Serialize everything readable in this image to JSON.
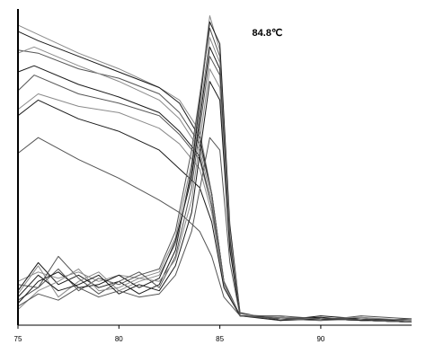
{
  "chart_data": {
    "type": "line",
    "title": "",
    "xlabel": "",
    "ylabel": "",
    "xlim": [
      75,
      94.5
    ],
    "ylim": [
      0,
      1
    ],
    "x_ticks": [
      75,
      80,
      85,
      90
    ],
    "x_tick_labels": [
      "75",
      "80",
      "85",
      "90"
    ],
    "grid": false,
    "legend": "none",
    "annotation": {
      "text": "84.8℃",
      "x": 86.6,
      "y": 0.925
    },
    "colors": {
      "dark": "#1a1a1a",
      "mid": "#555555",
      "light": "#8a8a8a"
    },
    "melt_curves": [
      {
        "values": [
          [
            75,
            0.96
          ],
          [
            76,
            0.93
          ],
          [
            78,
            0.87
          ],
          [
            80,
            0.82
          ],
          [
            82,
            0.76
          ],
          [
            83,
            0.72
          ],
          [
            84,
            0.62
          ],
          [
            84.6,
            0.42
          ],
          [
            85.2,
            0.14
          ],
          [
            86,
            0.03
          ],
          [
            90,
            0.02
          ],
          [
            94.5,
            0.01
          ]
        ]
      },
      {
        "values": [
          [
            75,
            0.94
          ],
          [
            76,
            0.91
          ],
          [
            78,
            0.86
          ],
          [
            80,
            0.81
          ],
          [
            82,
            0.76
          ],
          [
            83,
            0.71
          ],
          [
            84,
            0.6
          ],
          [
            84.6,
            0.42
          ],
          [
            85.2,
            0.14
          ],
          [
            86,
            0.03
          ],
          [
            90,
            0.02
          ],
          [
            94.5,
            0.01
          ]
        ]
      },
      {
        "values": [
          [
            75,
            0.88
          ],
          [
            76,
            0.87
          ],
          [
            78,
            0.82
          ],
          [
            80,
            0.79
          ],
          [
            82,
            0.74
          ],
          [
            83,
            0.68
          ],
          [
            84,
            0.58
          ],
          [
            84.6,
            0.42
          ],
          [
            85.2,
            0.14
          ],
          [
            86,
            0.03
          ],
          [
            90,
            0.02
          ],
          [
            94.5,
            0.01
          ]
        ]
      },
      {
        "values": [
          [
            75,
            0.87
          ],
          [
            75.8,
            0.89
          ],
          [
            78,
            0.83
          ],
          [
            80,
            0.78
          ],
          [
            82,
            0.72
          ],
          [
            83,
            0.66
          ],
          [
            84,
            0.56
          ],
          [
            84.6,
            0.4
          ],
          [
            85.2,
            0.13
          ],
          [
            86,
            0.03
          ],
          [
            90,
            0.02
          ],
          [
            94.5,
            0.01
          ]
        ]
      },
      {
        "values": [
          [
            75,
            0.81
          ],
          [
            75.8,
            0.83
          ],
          [
            78,
            0.77
          ],
          [
            80,
            0.73
          ],
          [
            82,
            0.68
          ],
          [
            83,
            0.62
          ],
          [
            84,
            0.54
          ],
          [
            84.6,
            0.38
          ],
          [
            85.2,
            0.13
          ],
          [
            86,
            0.03
          ],
          [
            90,
            0.02
          ],
          [
            94.5,
            0.01
          ]
        ]
      },
      {
        "values": [
          [
            75,
            0.75
          ],
          [
            75.8,
            0.8
          ],
          [
            78,
            0.74
          ],
          [
            80,
            0.71
          ],
          [
            82,
            0.67
          ],
          [
            83,
            0.61
          ],
          [
            84,
            0.53
          ],
          [
            84.6,
            0.38
          ],
          [
            85.2,
            0.13
          ],
          [
            86,
            0.03
          ],
          [
            90,
            0.02
          ],
          [
            94.5,
            0.01
          ]
        ]
      },
      {
        "values": [
          [
            75,
            0.69
          ],
          [
            76,
            0.74
          ],
          [
            78,
            0.7
          ],
          [
            80,
            0.68
          ],
          [
            82,
            0.63
          ],
          [
            83,
            0.58
          ],
          [
            84,
            0.5
          ],
          [
            84.6,
            0.36
          ],
          [
            85.2,
            0.13
          ],
          [
            86,
            0.03
          ],
          [
            90,
            0.02
          ],
          [
            94.5,
            0.01
          ]
        ]
      },
      {
        "values": [
          [
            75,
            0.67
          ],
          [
            76,
            0.72
          ],
          [
            78,
            0.66
          ],
          [
            80,
            0.62
          ],
          [
            82,
            0.56
          ],
          [
            83,
            0.5
          ],
          [
            84,
            0.44
          ],
          [
            84.6,
            0.33
          ],
          [
            85.2,
            0.12
          ],
          [
            86,
            0.03
          ],
          [
            90,
            0.02
          ],
          [
            94.5,
            0.01
          ]
        ]
      },
      {
        "values": [
          [
            75,
            0.55
          ],
          [
            76,
            0.6
          ],
          [
            78,
            0.53
          ],
          [
            80,
            0.47
          ],
          [
            82,
            0.4
          ],
          [
            83,
            0.36
          ],
          [
            84,
            0.3
          ],
          [
            84.6,
            0.22
          ],
          [
            85.2,
            0.09
          ],
          [
            86,
            0.03
          ],
          [
            90,
            0.02
          ],
          [
            94.5,
            0.01
          ]
        ]
      }
    ],
    "derivative_curves": [
      {
        "values": [
          [
            75,
            0.14
          ],
          [
            76,
            0.17
          ],
          [
            77,
            0.15
          ],
          [
            78,
            0.17
          ],
          [
            79,
            0.14
          ],
          [
            80,
            0.16
          ],
          [
            81,
            0.15
          ],
          [
            82,
            0.17
          ],
          [
            82.8,
            0.28
          ],
          [
            83.6,
            0.52
          ],
          [
            84.5,
            0.99
          ],
          [
            85,
            0.88
          ],
          [
            85.5,
            0.3
          ],
          [
            86,
            0.03
          ],
          [
            88,
            0.02
          ],
          [
            90,
            0.02
          ],
          [
            92,
            0.025
          ],
          [
            94.5,
            0.01
          ]
        ]
      },
      {
        "values": [
          [
            75,
            0.11
          ],
          [
            76,
            0.2
          ],
          [
            77,
            0.13
          ],
          [
            78,
            0.16
          ],
          [
            79,
            0.12
          ],
          [
            80,
            0.14
          ],
          [
            81,
            0.1
          ],
          [
            82,
            0.13
          ],
          [
            82.8,
            0.24
          ],
          [
            83.6,
            0.5
          ],
          [
            84.5,
            0.97
          ],
          [
            85,
            0.9
          ],
          [
            85.5,
            0.32
          ],
          [
            86,
            0.04
          ],
          [
            88,
            0.015
          ],
          [
            90,
            0.03
          ],
          [
            92,
            0.02
          ],
          [
            94.5,
            0.015
          ]
        ]
      },
      {
        "values": [
          [
            75,
            0.08
          ],
          [
            76,
            0.12
          ],
          [
            77,
            0.18
          ],
          [
            78,
            0.11
          ],
          [
            79,
            0.15
          ],
          [
            80,
            0.13
          ],
          [
            81,
            0.16
          ],
          [
            82,
            0.18
          ],
          [
            82.8,
            0.3
          ],
          [
            83.6,
            0.56
          ],
          [
            84.5,
            0.95
          ],
          [
            85,
            0.86
          ],
          [
            85.5,
            0.28
          ],
          [
            86,
            0.03
          ],
          [
            88,
            0.02
          ],
          [
            90,
            0.015
          ],
          [
            92,
            0.03
          ],
          [
            94.5,
            0.02
          ]
        ]
      },
      {
        "values": [
          [
            75,
            0.1
          ],
          [
            76,
            0.19
          ],
          [
            77,
            0.09
          ],
          [
            78,
            0.14
          ],
          [
            79,
            0.17
          ],
          [
            80,
            0.11
          ],
          [
            81,
            0.14
          ],
          [
            82,
            0.16
          ],
          [
            82.8,
            0.26
          ],
          [
            83.6,
            0.48
          ],
          [
            84.5,
            0.92
          ],
          [
            85,
            0.84
          ],
          [
            85.5,
            0.3
          ],
          [
            86,
            0.035
          ],
          [
            88,
            0.025
          ],
          [
            90,
            0.02
          ],
          [
            92,
            0.02
          ],
          [
            94.5,
            0.01
          ]
        ]
      },
      {
        "values": [
          [
            75,
            0.07
          ],
          [
            76,
            0.14
          ],
          [
            77,
            0.17
          ],
          [
            78,
            0.12
          ],
          [
            79,
            0.13
          ],
          [
            80,
            0.16
          ],
          [
            81,
            0.12
          ],
          [
            82,
            0.15
          ],
          [
            82.8,
            0.27
          ],
          [
            83.6,
            0.47
          ],
          [
            84.5,
            0.89
          ],
          [
            85,
            0.82
          ],
          [
            85.5,
            0.27
          ],
          [
            86,
            0.03
          ],
          [
            88,
            0.02
          ],
          [
            90,
            0.025
          ],
          [
            92,
            0.015
          ],
          [
            94.5,
            0.02
          ]
        ]
      },
      {
        "values": [
          [
            75,
            0.13
          ],
          [
            76,
            0.12
          ],
          [
            77,
            0.22
          ],
          [
            78,
            0.15
          ],
          [
            79,
            0.1
          ],
          [
            80,
            0.14
          ],
          [
            81,
            0.17
          ],
          [
            82,
            0.12
          ],
          [
            82.8,
            0.22
          ],
          [
            83.6,
            0.44
          ],
          [
            84.5,
            0.86
          ],
          [
            85,
            0.8
          ],
          [
            85.5,
            0.26
          ],
          [
            86,
            0.03
          ],
          [
            88,
            0.03
          ],
          [
            90,
            0.02
          ],
          [
            92,
            0.02
          ],
          [
            94.5,
            0.01
          ]
        ]
      },
      {
        "values": [
          [
            75,
            0.05
          ],
          [
            76,
            0.11
          ],
          [
            77,
            0.14
          ],
          [
            78,
            0.18
          ],
          [
            79,
            0.11
          ],
          [
            80,
            0.12
          ],
          [
            81,
            0.15
          ],
          [
            82,
            0.14
          ],
          [
            82.8,
            0.21
          ],
          [
            83.6,
            0.4
          ],
          [
            84.5,
            0.82
          ],
          [
            85,
            0.76
          ],
          [
            85.5,
            0.25
          ],
          [
            86,
            0.03
          ],
          [
            88,
            0.02
          ],
          [
            90,
            0.02
          ],
          [
            92,
            0.025
          ],
          [
            94.5,
            0.015
          ]
        ]
      },
      {
        "values": [
          [
            75,
            0.09
          ],
          [
            76,
            0.16
          ],
          [
            77,
            0.11
          ],
          [
            78,
            0.13
          ],
          [
            79,
            0.16
          ],
          [
            80,
            0.1
          ],
          [
            81,
            0.13
          ],
          [
            82,
            0.11
          ],
          [
            82.8,
            0.19
          ],
          [
            83.6,
            0.36
          ],
          [
            84.5,
            0.78
          ],
          [
            85,
            0.72
          ],
          [
            85.5,
            0.24
          ],
          [
            86,
            0.03
          ],
          [
            88,
            0.015
          ],
          [
            90,
            0.02
          ],
          [
            92,
            0.02
          ],
          [
            94.5,
            0.01
          ]
        ]
      },
      {
        "values": [
          [
            75,
            0.06
          ],
          [
            76,
            0.1
          ],
          [
            77,
            0.08
          ],
          [
            78,
            0.12
          ],
          [
            79,
            0.09
          ],
          [
            80,
            0.11
          ],
          [
            81,
            0.09
          ],
          [
            82,
            0.1
          ],
          [
            82.8,
            0.16
          ],
          [
            83.6,
            0.3
          ],
          [
            84.5,
            0.6
          ],
          [
            85,
            0.56
          ],
          [
            85.5,
            0.2
          ],
          [
            86,
            0.03
          ],
          [
            88,
            0.02
          ],
          [
            90,
            0.015
          ],
          [
            92,
            0.02
          ],
          [
            94.5,
            0.01
          ]
        ]
      }
    ]
  }
}
